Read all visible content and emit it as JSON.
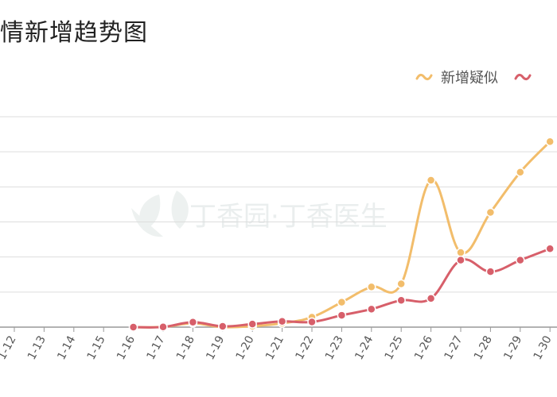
{
  "title": "情新增趋势图",
  "watermark": "丁香园·丁香医生",
  "colors": {
    "suspected": "#f2bd6b",
    "confirmed": "#d75f6a",
    "grid": "#dddddd",
    "axis": "#999999"
  },
  "chart_data": {
    "type": "line",
    "title": "情新增趋势图",
    "legend_position": "top-right",
    "grid": true,
    "categories": [
      "1-12",
      "1-13",
      "1-14",
      "1-15",
      "1-16",
      "1-17",
      "1-18",
      "1-19",
      "1-20",
      "1-21",
      "1-22",
      "1-23",
      "1-24",
      "1-25",
      "1-26",
      "1-27",
      "1-28",
      "1-29",
      "1-30"
    ],
    "ylim": [
      0,
      5500
    ],
    "series": [
      {
        "name": "新增疑似",
        "color": "#f2bd6b",
        "values": [
          null,
          null,
          null,
          null,
          0,
          4,
          100,
          0,
          25,
          100,
          260,
          650,
          1050,
          1130,
          3840,
          1950,
          3000,
          4050,
          4850
        ]
      },
      {
        "name": "",
        "color": "#d75f6a",
        "values": [
          null,
          null,
          null,
          null,
          0,
          4,
          130,
          20,
          80,
          150,
          135,
          310,
          470,
          700,
          750,
          1750,
          1450,
          1750,
          2050
        ]
      }
    ]
  }
}
